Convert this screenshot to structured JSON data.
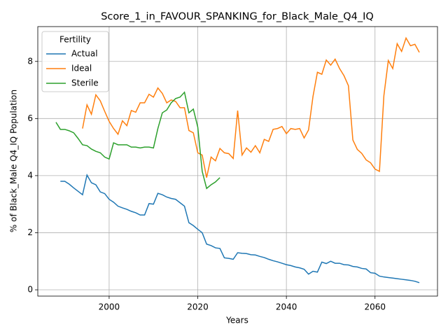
{
  "chart_data": {
    "type": "line",
    "title": "Score_1_in_FAVOUR_SPANKING_for_Black_Male_Q4_IQ",
    "xlabel": "Years",
    "ylabel": "% of Black_Male Q4_IQ Population",
    "legend_title": "Fertility",
    "legend": "upper left",
    "grid": true,
    "xlim": [
      1983.9,
      2074.1
    ],
    "ylim": [
      -0.22,
      9.22
    ],
    "xticks": [
      2000,
      2020,
      2040,
      2060
    ],
    "yticks": [
      0,
      2,
      4,
      6,
      8
    ],
    "x": [
      1988,
      1989,
      1990,
      1991,
      1992,
      1993,
      1994,
      1995,
      1996,
      1997,
      1998,
      1999,
      2000,
      2001,
      2002,
      2003,
      2004,
      2005,
      2006,
      2007,
      2008,
      2009,
      2010,
      2011,
      2012,
      2013,
      2014,
      2015,
      2016,
      2017,
      2018,
      2019,
      2020,
      2021,
      2022,
      2023,
      2024,
      2025,
      2026,
      2027,
      2028,
      2029,
      2030,
      2031,
      2032,
      2033,
      2034,
      2035,
      2036,
      2037,
      2038,
      2039,
      2040,
      2041,
      2042,
      2043,
      2044,
      2045,
      2046,
      2047,
      2048,
      2049,
      2050,
      2051,
      2052,
      2053,
      2054,
      2055,
      2056,
      2057,
      2058,
      2059,
      2060,
      2061,
      2062,
      2063,
      2064,
      2065,
      2066,
      2067,
      2068,
      2069,
      2070
    ],
    "series": [
      {
        "name": "Actual",
        "color": "#1f77b4",
        "values": [
          null,
          3.8,
          3.8,
          3.7,
          3.57,
          3.45,
          3.33,
          4.02,
          3.75,
          3.68,
          3.43,
          3.37,
          3.17,
          3.07,
          2.93,
          2.87,
          2.82,
          2.75,
          2.7,
          2.62,
          2.62,
          3.02,
          3.0,
          3.38,
          3.33,
          3.25,
          3.2,
          3.17,
          3.05,
          2.93,
          2.35,
          2.25,
          2.12,
          2.0,
          1.6,
          1.55,
          1.47,
          1.45,
          1.12,
          1.1,
          1.07,
          1.3,
          1.28,
          1.27,
          1.23,
          1.22,
          1.17,
          1.13,
          1.07,
          1.02,
          0.98,
          0.93,
          0.88,
          0.85,
          0.8,
          0.77,
          0.72,
          0.55,
          0.65,
          0.62,
          0.97,
          0.92,
          1.0,
          0.93,
          0.93,
          0.88,
          0.87,
          0.82,
          0.8,
          0.75,
          0.73,
          0.6,
          0.58,
          0.48,
          0.45,
          0.43,
          0.41,
          0.39,
          0.37,
          0.35,
          0.33,
          0.3,
          0.25
        ]
      },
      {
        "name": "Ideal",
        "color": "#ff7f0e",
        "values": [
          null,
          null,
          null,
          null,
          null,
          null,
          5.65,
          6.48,
          6.15,
          6.83,
          6.62,
          6.25,
          5.9,
          5.65,
          5.45,
          5.92,
          5.75,
          6.28,
          6.22,
          6.55,
          6.55,
          6.85,
          6.75,
          7.07,
          6.88,
          6.55,
          6.65,
          6.6,
          6.38,
          6.38,
          5.58,
          5.5,
          4.8,
          4.72,
          3.93,
          4.65,
          4.52,
          4.95,
          4.8,
          4.77,
          4.6,
          6.28,
          4.72,
          4.97,
          4.82,
          5.05,
          4.8,
          5.27,
          5.2,
          5.62,
          5.65,
          5.72,
          5.47,
          5.65,
          5.62,
          5.65,
          5.32,
          5.6,
          6.77,
          7.62,
          7.55,
          8.05,
          7.87,
          8.08,
          7.75,
          7.5,
          7.15,
          5.25,
          4.92,
          4.78,
          4.55,
          4.45,
          4.23,
          4.15,
          6.8,
          8.03,
          7.75,
          8.62,
          8.35,
          8.82,
          8.55,
          8.6,
          8.32
        ]
      },
      {
        "name": "Sterile",
        "color": "#2ca02c",
        "values": [
          5.87,
          5.62,
          5.62,
          5.57,
          5.5,
          5.3,
          5.08,
          5.05,
          4.93,
          4.85,
          4.8,
          4.65,
          4.58,
          5.15,
          5.08,
          5.08,
          5.08,
          5.0,
          5.0,
          4.97,
          5.0,
          5.0,
          4.97,
          5.65,
          6.2,
          6.3,
          6.55,
          6.7,
          6.75,
          6.92,
          6.2,
          6.33,
          5.7,
          4.15,
          3.55,
          3.68,
          3.78,
          3.93,
          null,
          null,
          null,
          null,
          null,
          null,
          null,
          null,
          null,
          null,
          null,
          null,
          null,
          null,
          null,
          null,
          null,
          null,
          null,
          null,
          null,
          null,
          null,
          null,
          null,
          null,
          null,
          null,
          null,
          null,
          null,
          null,
          null,
          null,
          null,
          null,
          null,
          null,
          null,
          null,
          null,
          null,
          null,
          null,
          null
        ]
      }
    ]
  }
}
